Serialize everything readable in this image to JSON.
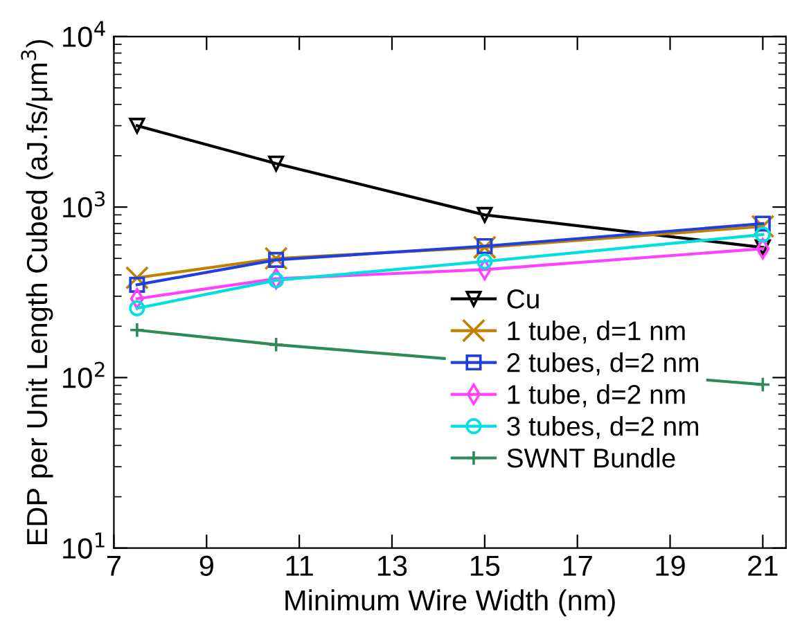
{
  "chart_data": {
    "type": "line",
    "xlabel": "Minimum Wire Width (nm)",
    "ylabel": "EDP per Unit Length Cubed (aJ.fs/μm$^{3}$)",
    "x": [
      7.5,
      10.5,
      15,
      21
    ],
    "xlim": [
      7,
      21.5
    ],
    "xticks": [
      7,
      9,
      11,
      13,
      15,
      17,
      19,
      21
    ],
    "log": "y",
    "ylim": [
      10,
      10000
    ],
    "yticks": [
      {
        "value": 10,
        "label": "10$^{1}$"
      },
      {
        "value": 100,
        "label": "10$^{2}$"
      },
      {
        "value": 1000,
        "label": "10$^{3}$"
      },
      {
        "value": 10000,
        "label": "10$^{4}$"
      }
    ],
    "grid": false,
    "legend": "bottom right",
    "series": [
      {
        "name": "Cu",
        "color": "#000000",
        "marker": "triangle",
        "values": [
          3000,
          1800,
          900,
          580
        ]
      },
      {
        "name": "1 tube, d=1 nm",
        "color": "#c08000",
        "marker": "cross",
        "values": [
          385,
          500,
          580,
          770
        ]
      },
      {
        "name": "2 tubes, d=2 nm",
        "color": "#1f3fdf",
        "marker": "square",
        "values": [
          350,
          490,
          590,
          800
        ]
      },
      {
        "name": "1 tube, d=2 nm",
        "color": "#ff40ff",
        "marker": "diamond",
        "values": [
          290,
          380,
          430,
          570
        ]
      },
      {
        "name": "3 tubes, d=2 nm",
        "color": "#00e0e0",
        "marker": "circle",
        "values": [
          255,
          372,
          480,
          690
        ]
      },
      {
        "name": "SWNT Bundle",
        "color": "#2e8b57",
        "marker": "plus",
        "values": [
          190,
          156,
          null,
          91
        ]
      }
    ]
  }
}
